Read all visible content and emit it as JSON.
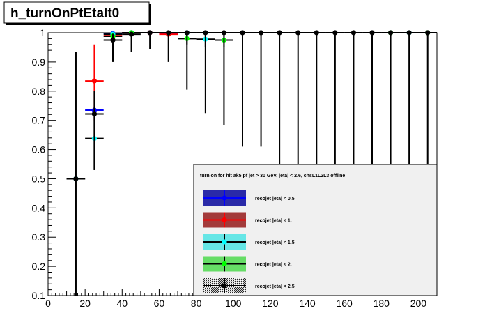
{
  "title": "h_turnOnPtEtalt0",
  "chart_data": {
    "type": "scatter",
    "title": "h_turnOnPtEtalt0",
    "xlabel": "",
    "ylabel": "",
    "xlim": [
      0,
      210
    ],
    "ylim": [
      0.1,
      1.0
    ],
    "xticks": [
      "0",
      "20",
      "40",
      "60",
      "80",
      "100",
      "120",
      "140",
      "160",
      "180",
      "200"
    ],
    "yticks": [
      "0.1",
      "0.2",
      "0.3",
      "0.4",
      "0.5",
      "0.6",
      "0.7",
      "0.8",
      "0.9",
      "1"
    ],
    "grid": false,
    "legend_position": "bottom-right",
    "legend_header": "turn on for hlt ak5 pf jet > 30 GeV, |eta| < 2.6, chsL1L2L3 offline",
    "series": [
      {
        "name": "recojet |eta| < 0.5",
        "color": "#0000ff",
        "fill": "#2a2aa8",
        "points": [
          {
            "x": 25,
            "y": 0.735,
            "ylo": 0.725,
            "yhi": 0.745
          },
          {
            "x": 35,
            "y": 0.997,
            "ylo": 0.993,
            "yhi": 1.0
          },
          {
            "x": 45,
            "y": 1.0,
            "ylo": 0.997,
            "yhi": 1.0
          },
          {
            "x": 55,
            "y": 1.0,
            "ylo": 0.997,
            "yhi": 1.0
          },
          {
            "x": 65,
            "y": 0.998,
            "ylo": 0.995,
            "yhi": 1.0
          },
          {
            "x": 75,
            "y": 1.0,
            "ylo": 0.997,
            "yhi": 1.0
          }
        ]
      },
      {
        "name": "recojet |eta| < 1.",
        "color": "#ff0000",
        "fill": "#a33a3a",
        "points": [
          {
            "x": 25,
            "y": 0.835,
            "ylo": 0.7,
            "yhi": 0.96
          },
          {
            "x": 35,
            "y": 0.99,
            "ylo": 0.98,
            "yhi": 1.0
          },
          {
            "x": 45,
            "y": 1.0,
            "ylo": 0.995,
            "yhi": 1.0
          },
          {
            "x": 55,
            "y": 1.0,
            "ylo": 0.995,
            "yhi": 1.0
          },
          {
            "x": 65,
            "y": 0.995,
            "ylo": 0.99,
            "yhi": 1.0
          }
        ]
      },
      {
        "name": "recojet |eta| < 1.5",
        "color": "#00ffff",
        "fill": "#66e6e6",
        "points": [
          {
            "x": 15,
            "y": 0.5,
            "ylo": 0.1,
            "yhi": 0.935
          },
          {
            "x": 25,
            "y": 0.638,
            "ylo": 0.53,
            "yhi": 0.74
          },
          {
            "x": 35,
            "y": 0.995,
            "ylo": 0.99,
            "yhi": 1.0
          },
          {
            "x": 45,
            "y": 1.0,
            "ylo": 0.99,
            "yhi": 1.0
          },
          {
            "x": 75,
            "y": 1.0,
            "ylo": 0.99,
            "yhi": 1.0
          },
          {
            "x": 85,
            "y": 0.978,
            "ylo": 0.95,
            "yhi": 0.99
          },
          {
            "x": 195,
            "y": 1.0,
            "ylo": 1.0,
            "yhi": 1.0
          }
        ]
      },
      {
        "name": "recojet |eta| < 2.",
        "color": "#00ff00",
        "fill": "#66dd66",
        "points": [
          {
            "x": 35,
            "y": 0.988,
            "ylo": 0.975,
            "yhi": 1.0
          },
          {
            "x": 45,
            "y": 1.0,
            "ylo": 0.995,
            "yhi": 1.0
          },
          {
            "x": 75,
            "y": 0.98,
            "ylo": 0.96,
            "yhi": 1.0
          },
          {
            "x": 95,
            "y": 0.975,
            "ylo": 0.95,
            "yhi": 0.99
          },
          {
            "x": 185,
            "y": 1.0,
            "ylo": 1.0,
            "yhi": 1.0
          },
          {
            "x": 205,
            "y": 1.0,
            "ylo": 1.0,
            "yhi": 1.0
          }
        ]
      },
      {
        "name": "recojet |eta| < 2.5",
        "color": "#000000",
        "fill": "#444444",
        "points": [
          {
            "x": 15,
            "y": 0.5,
            "ylo": 0.1,
            "yhi": 0.935
          },
          {
            "x": 25,
            "y": 0.722,
            "ylo": 0.53,
            "yhi": 0.8
          },
          {
            "x": 35,
            "y": 0.975,
            "ylo": 0.9,
            "yhi": 0.995
          },
          {
            "x": 45,
            "y": 0.995,
            "ylo": 0.935,
            "yhi": 1.0
          },
          {
            "x": 55,
            "y": 1.0,
            "ylo": 0.945,
            "yhi": 1.0
          },
          {
            "x": 65,
            "y": 1.0,
            "ylo": 0.9,
            "yhi": 1.0
          },
          {
            "x": 75,
            "y": 1.0,
            "ylo": 0.805,
            "yhi": 1.0
          },
          {
            "x": 85,
            "y": 1.0,
            "ylo": 0.725,
            "yhi": 1.0
          },
          {
            "x": 95,
            "y": 1.0,
            "ylo": 0.685,
            "yhi": 1.0
          },
          {
            "x": 105,
            "y": 1.0,
            "ylo": 0.61,
            "yhi": 1.0
          },
          {
            "x": 115,
            "y": 1.0,
            "ylo": 0.61,
            "yhi": 1.0
          },
          {
            "x": 125,
            "y": 1.0,
            "ylo": 0.5,
            "yhi": 1.0
          },
          {
            "x": 135,
            "y": 1.0,
            "ylo": 0.5,
            "yhi": 1.0
          },
          {
            "x": 145,
            "y": 1.0,
            "ylo": 0.5,
            "yhi": 1.0
          },
          {
            "x": 155,
            "y": 1.0,
            "ylo": 0.5,
            "yhi": 1.0
          },
          {
            "x": 165,
            "y": 1.0,
            "ylo": 0.5,
            "yhi": 1.0
          },
          {
            "x": 175,
            "y": 1.0,
            "ylo": 0.5,
            "yhi": 1.0
          },
          {
            "x": 185,
            "y": 1.0,
            "ylo": 0.5,
            "yhi": 1.0
          },
          {
            "x": 195,
            "y": 1.0,
            "ylo": 0.5,
            "yhi": 1.0
          },
          {
            "x": 205,
            "y": 1.0,
            "ylo": 0.5,
            "yhi": 1.0
          }
        ]
      }
    ]
  }
}
